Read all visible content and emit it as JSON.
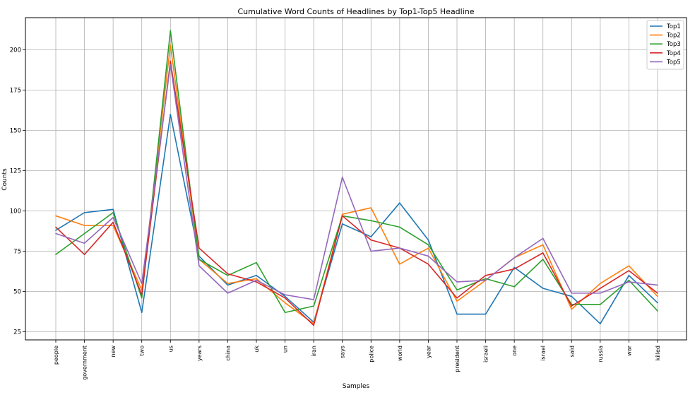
{
  "chart_data": {
    "type": "line",
    "title": "Cumulative Word Counts of Headlines by Top1-Top5 Headline",
    "xlabel": "Samples",
    "ylabel": "Counts",
    "categories": [
      "people",
      "government",
      "new",
      "two",
      "us",
      "years",
      "china",
      "uk",
      "un",
      "iran",
      "says",
      "police",
      "world",
      "year",
      "president",
      "israeli",
      "one",
      "israel",
      "said",
      "russia",
      "war",
      "killed"
    ],
    "ylim": [
      20,
      220
    ],
    "yticks": [
      25,
      50,
      75,
      100,
      125,
      150,
      175,
      200
    ],
    "grid": true,
    "legend_position": "top-right",
    "series": [
      {
        "name": "Top1",
        "color": "#1f77b4",
        "values": [
          88,
          99,
          101,
          37,
          160,
          72,
          54,
          60,
          47,
          31,
          92,
          84,
          105,
          82,
          36,
          36,
          65,
          52,
          47,
          30,
          60,
          43
        ]
      },
      {
        "name": "Top2",
        "color": "#ff7f0e",
        "values": [
          97,
          91,
          91,
          51,
          203,
          70,
          55,
          58,
          43,
          30,
          98,
          102,
          67,
          77,
          44,
          57,
          71,
          79,
          39,
          55,
          66,
          47
        ]
      },
      {
        "name": "Top3",
        "color": "#2ca02c",
        "values": [
          73,
          86,
          99,
          46,
          212,
          70,
          60,
          68,
          37,
          41,
          97,
          94,
          90,
          79,
          51,
          58,
          53,
          70,
          42,
          42,
          57,
          38
        ]
      },
      {
        "name": "Top4",
        "color": "#d62728",
        "values": [
          90,
          73,
          93,
          48,
          193,
          77,
          61,
          56,
          46,
          29,
          97,
          82,
          77,
          67,
          46,
          60,
          64,
          74,
          41,
          52,
          63,
          49
        ]
      },
      {
        "name": "Top5",
        "color": "#9467bd",
        "values": [
          86,
          80,
          96,
          55,
          191,
          66,
          49,
          57,
          48,
          45,
          121,
          75,
          77,
          72,
          56,
          57,
          71,
          83,
          49,
          49,
          56,
          54
        ]
      }
    ]
  }
}
